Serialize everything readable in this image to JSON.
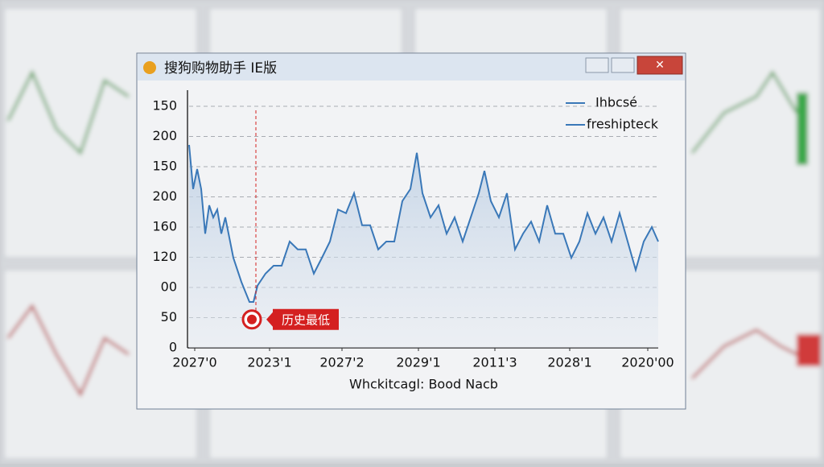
{
  "window": {
    "title": "搜狗购物助手 IE版"
  },
  "chart_data": {
    "type": "line",
    "x_label": "Whckitcagl: Bood Nacb",
    "x": [
      0,
      0.5,
      1,
      1.5,
      2,
      2.5,
      3,
      3.5,
      4,
      4.5,
      5.5,
      6.5,
      7.5,
      8,
      8.5,
      9.5,
      10.5,
      11.5,
      12.5,
      13.5,
      14.5,
      15.5,
      16.5,
      17.5,
      18.5,
      19.5,
      20.5,
      21.5,
      22.5,
      23.5,
      24.5,
      25.5,
      26.5,
      27.5,
      28.3,
      29,
      30,
      31,
      32,
      33,
      34,
      35,
      36,
      36.7,
      37.5,
      38.5,
      39.5,
      40.5,
      41.5,
      42.5,
      43.5,
      44.5,
      45.5,
      46.5,
      47.5,
      48.5,
      49.5,
      50.5,
      51.5,
      52.5,
      53.5,
      54.5,
      55.5,
      56.5,
      57.5,
      58.3
    ],
    "series": [
      {
        "name": "Ihbcsé",
        "color": "#3a78b8",
        "values": [
          336,
          263,
          296,
          263,
          189,
          236,
          216,
          229,
          189,
          216,
          149,
          109,
          76,
          76,
          103,
          123,
          136,
          136,
          176,
          163,
          163,
          123,
          149,
          176,
          229,
          223,
          256,
          203,
          203,
          163,
          176,
          176,
          243,
          263,
          323,
          256,
          216,
          236,
          189,
          216,
          176,
          216,
          256,
          293,
          243,
          216,
          256,
          163,
          189,
          209,
          176,
          236,
          189,
          189,
          149,
          176,
          223,
          189,
          216,
          176,
          223,
          176,
          129,
          176,
          200,
          176
        ]
      }
    ],
    "legend": {
      "entries": [
        "Ihbcsé",
        "freshipteck"
      ],
      "position": "upper right"
    },
    "xlim": [
      0,
      58.3
    ],
    "xticks": [
      {
        "value": 0.7,
        "label": "2027'0"
      },
      {
        "value": 10,
        "label": "2023'1"
      },
      {
        "value": 19,
        "label": "2027'2"
      },
      {
        "value": 28.5,
        "label": "2029'1"
      },
      {
        "value": 38,
        "label": "2011'3"
      },
      {
        "value": 47.3,
        "label": "2028'1"
      },
      {
        "value": 57,
        "label": "2020'00"
      }
    ],
    "ylim": [
      0,
      420
    ],
    "yticks": [
      0,
      50,
      {
        "value": 100,
        "label": "00"
      },
      {
        "value": 150,
        "label": "120"
      },
      {
        "value": 200,
        "label": "160"
      },
      {
        "value": 250,
        "label": "200"
      },
      {
        "value": 300,
        "label": "150"
      },
      {
        "value": 350,
        "label": "200"
      },
      {
        "value": 400,
        "label": "150"
      }
    ],
    "grid": true,
    "annotation": {
      "text": "历史最低",
      "x": 7.8,
      "y": 47,
      "color": "#d42020"
    }
  }
}
